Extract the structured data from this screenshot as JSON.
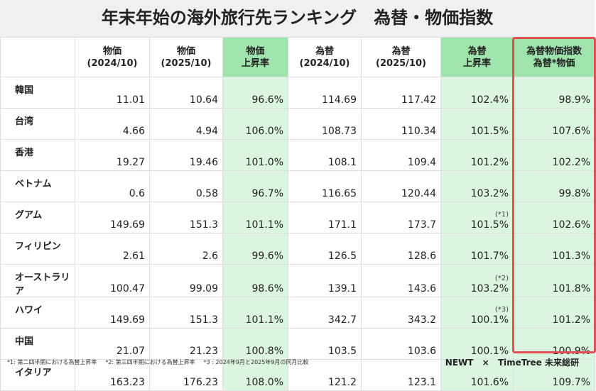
{
  "header": {
    "title": "年末年始の海外旅行先ランキング　為替・物価指数"
  },
  "table": {
    "columns": [
      "物価\n(2024/10)",
      "物価\n(2025/10)",
      "物価\n上昇率",
      "為替\n(2024/10)",
      "為替\n(2025/10)",
      "為替\n上昇率",
      "為替物価指数\n為替*物価"
    ],
    "rows": [
      {
        "label": "韓国",
        "values": [
          "11.01",
          "10.64",
          "96.6%",
          "114.69",
          "117.42",
          "102.4%",
          "98.9%"
        ]
      },
      {
        "label": "台湾",
        "values": [
          "4.66",
          "4.94",
          "106.0%",
          "108.73",
          "110.34",
          "101.5%",
          "107.6%"
        ]
      },
      {
        "label": "香港",
        "values": [
          "19.27",
          "19.46",
          "101.0%",
          "108.1",
          "109.4",
          "101.2%",
          "102.2%"
        ]
      },
      {
        "label": "ベトナム",
        "values": [
          "0.6",
          "0.58",
          "96.7%",
          "116.65",
          "120.44",
          "103.2%",
          "99.8%"
        ]
      },
      {
        "label": "グアム",
        "values": [
          "149.69",
          "151.3",
          "101.1%",
          "171.1",
          "173.7",
          "101.5%",
          "102.6%"
        ],
        "rate_note": "(*1)"
      },
      {
        "label": "フィリピン",
        "values": [
          "2.61",
          "2.6",
          "99.6%",
          "126.5",
          "128.6",
          "101.7%",
          "101.3%"
        ]
      },
      {
        "label": "オーストラリア",
        "values": [
          "100.47",
          "99.09",
          "98.6%",
          "139.1",
          "143.6",
          "103.2%",
          "101.8%"
        ],
        "rate_note": "(*2)"
      },
      {
        "label": "ハワイ",
        "values": [
          "149.69",
          "151.3",
          "101.1%",
          "342.7",
          "343.2",
          "100.1%",
          "101.2%"
        ],
        "rate_note": "(*3)"
      },
      {
        "label": "中国",
        "values": [
          "21.07",
          "21.23",
          "100.8%",
          "103.5",
          "103.6",
          "100.1%",
          "100.9%"
        ]
      },
      {
        "label": "イタリア",
        "values": [
          "163.23",
          "176.23",
          "108.0%",
          "121.2",
          "123.1",
          "101.6%",
          "109.7%"
        ]
      }
    ]
  },
  "footer": {
    "notes": [
      "*1: 第二四半期における為替上昇率",
      "*2: 第三四半期における為替上昇率",
      "*3 : 2024年9月と2025年9月の同月比較"
    ],
    "logo_newt": "NEWT",
    "logo_times": "×",
    "logo_timetree": "TimeTree 未来総研"
  }
}
